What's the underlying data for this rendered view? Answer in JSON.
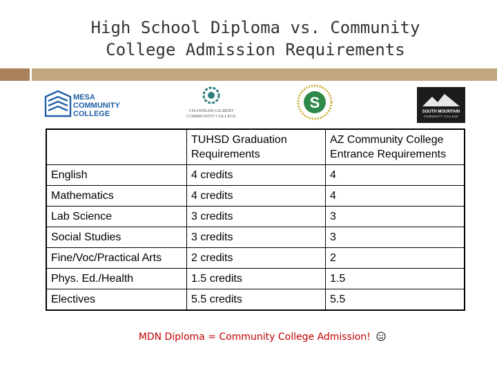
{
  "slide": {
    "title_line1": "High School Diploma vs. Community",
    "title_line2": "College Admission Requirements",
    "accent_color": "#c0a77f",
    "accent_color_dark": "#a9805a"
  },
  "logos": {
    "mesa": "MESA COMMUNITY COLLEGE",
    "mesa_line1": "MESA",
    "mesa_line2": "COMMUNITY",
    "mesa_line3": "COLLEGE",
    "chandler_line1": "CHANDLER-GILBERT",
    "chandler_line2": "COMMUNITY COLLEGE",
    "scottsdale_letter": "S",
    "southmountain_line1": "SOUTH MOUNTAIN",
    "southmountain_line2": "COMMUNITY COLLEGE"
  },
  "table": {
    "headers": [
      "",
      "TUHSD Graduation Requirements",
      "AZ Community College Entrance Requirements"
    ],
    "rows": [
      [
        "English",
        "4 credits",
        "4"
      ],
      [
        "Mathematics",
        "4 credits",
        "4"
      ],
      [
        "Lab Science",
        "3 credits",
        "3"
      ],
      [
        "Social Studies",
        "3 credits",
        "3"
      ],
      [
        "Fine/Voc/Practical Arts",
        "2 credits",
        "2"
      ],
      [
        "Phys. Ed./Health",
        "1.5 credits",
        "1.5"
      ],
      [
        "Electives",
        "5.5 credits",
        "5.5"
      ]
    ]
  },
  "footer": {
    "text": "MDN Diploma = Community College Admission!",
    "icon": "smiley-icon",
    "color": "#c00000"
  }
}
